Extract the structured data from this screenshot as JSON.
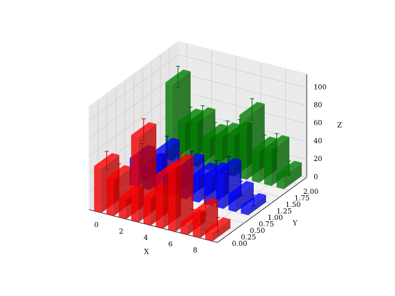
{
  "chart_data": {
    "type": "bar3d",
    "x": [
      0,
      1,
      2,
      3,
      4,
      5,
      6,
      7,
      8,
      9
    ],
    "series": [
      {
        "y": 0,
        "color": "#ff0000",
        "values": [
          50,
          40,
          22,
          95,
          30,
          58,
          70,
          12,
          28,
          10
        ],
        "errors": [
          10,
          10,
          10,
          12,
          10,
          10,
          10,
          8,
          10,
          8
        ]
      },
      {
        "y": 1,
        "color": "#0000ff",
        "values": [
          30,
          25,
          45,
          20,
          35,
          28,
          32,
          40,
          18,
          8
        ],
        "errors": [
          10,
          10,
          10,
          10,
          10,
          10,
          10,
          10,
          8,
          6
        ]
      },
      {
        "y": 2,
        "color": "#008000",
        "values": [
          85,
          45,
          50,
          35,
          40,
          45,
          70,
          35,
          40,
          15
        ],
        "errors": [
          12,
          10,
          10,
          10,
          10,
          10,
          12,
          10,
          10,
          8
        ]
      }
    ],
    "xlabel": "X",
    "ylabel": "Y",
    "zlabel": "Z",
    "xlim": [
      -0.7,
      9.7
    ],
    "ylim": [
      -0.25,
      2.25
    ],
    "zlim": [
      0,
      115
    ],
    "xticks": [
      0,
      2,
      4,
      6,
      8
    ],
    "yticks": [
      {
        "value": 0,
        "label": "0.00"
      },
      {
        "value": 0.25,
        "label": "0.25"
      },
      {
        "value": 0.5,
        "label": "0.50"
      },
      {
        "value": 0.75,
        "label": "0.75"
      },
      {
        "value": 1,
        "label": "1.00"
      },
      {
        "value": 1.25,
        "label": "1.25"
      },
      {
        "value": 1.5,
        "label": "1.50"
      },
      {
        "value": 1.75,
        "label": "1.75"
      },
      {
        "value": 2,
        "label": "2.00"
      }
    ],
    "zticks": [
      0,
      20,
      40,
      60,
      80,
      100
    ],
    "grid": true
  }
}
